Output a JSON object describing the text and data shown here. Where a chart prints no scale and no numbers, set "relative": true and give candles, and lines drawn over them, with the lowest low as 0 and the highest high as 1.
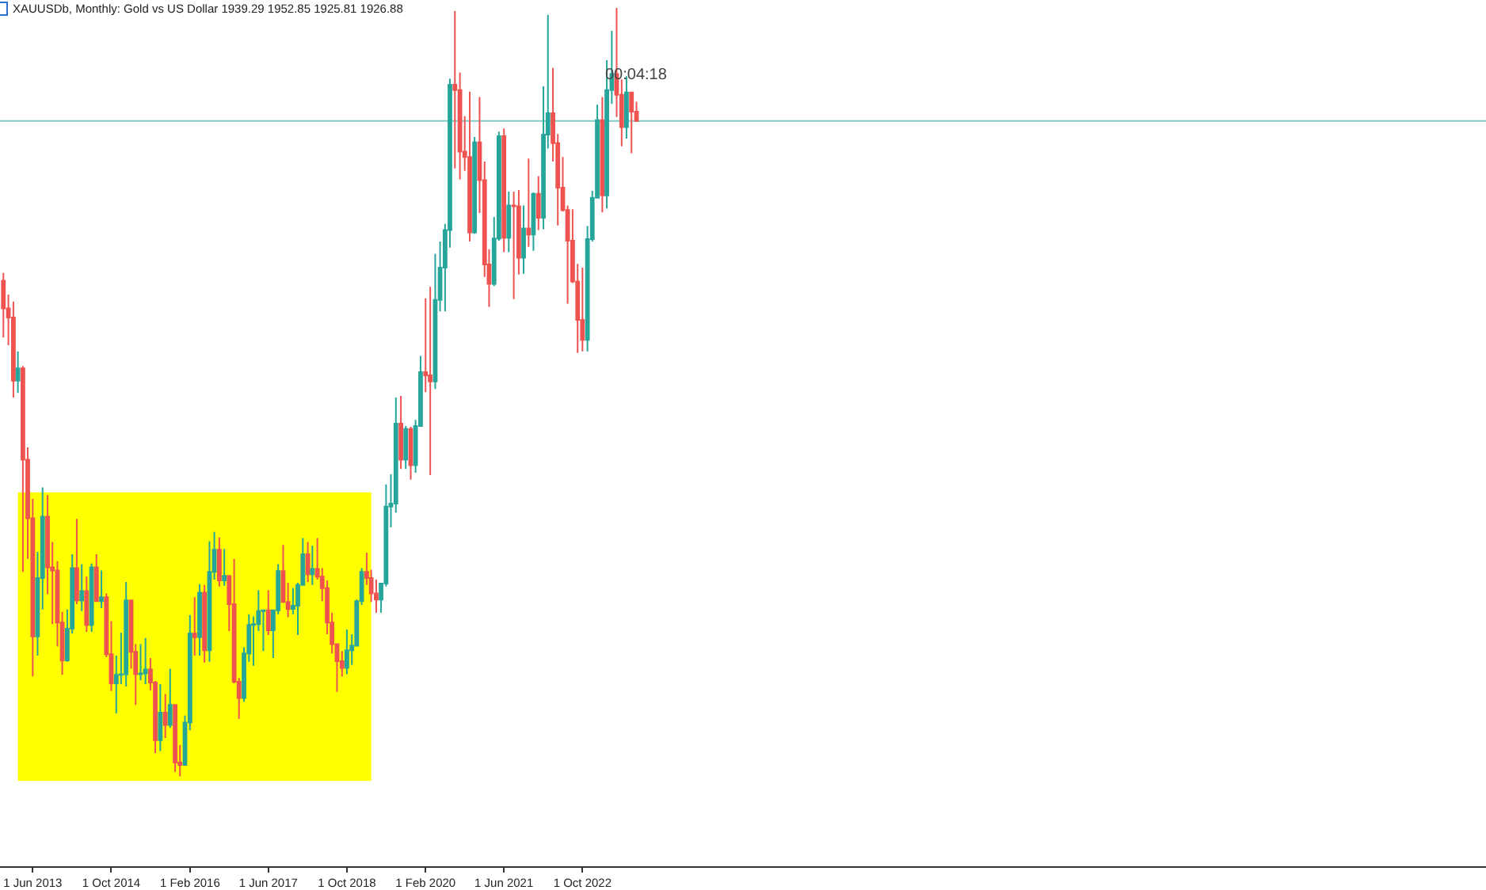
{
  "chart_data": {
    "type": "candlestick",
    "title": "XAUUSDb, Monthly: Gold vs US Dollar 1939.29 1952.85 1925.81 1926.88",
    "relative": true,
    "x": [
      "2012-12",
      "2013-01",
      "2013-02",
      "2013-03",
      "2013-04",
      "2013-05",
      "2013-06",
      "2013-07",
      "2013-08",
      "2013-09",
      "2013-10",
      "2013-11",
      "2013-12",
      "2014-01",
      "2014-02",
      "2014-03",
      "2014-04",
      "2014-05",
      "2014-06",
      "2014-07",
      "2014-08",
      "2014-09",
      "2014-10",
      "2014-11",
      "2014-12",
      "2015-01",
      "2015-02",
      "2015-03",
      "2015-04",
      "2015-05",
      "2015-06",
      "2015-07",
      "2015-08",
      "2015-09",
      "2015-10",
      "2015-11",
      "2015-12",
      "2016-01",
      "2016-02",
      "2016-03",
      "2016-04",
      "2016-05",
      "2016-06",
      "2016-07",
      "2016-08",
      "2016-09",
      "2016-10",
      "2016-11",
      "2016-12",
      "2017-01",
      "2017-02",
      "2017-03",
      "2017-04",
      "2017-05",
      "2017-06",
      "2017-07",
      "2017-08",
      "2017-09",
      "2017-10",
      "2017-11",
      "2017-12",
      "2018-01",
      "2018-02",
      "2018-03",
      "2018-04",
      "2018-05",
      "2018-06",
      "2018-07",
      "2018-08",
      "2018-09",
      "2018-10",
      "2018-11",
      "2018-12",
      "2019-01",
      "2019-02",
      "2019-03",
      "2019-04",
      "2019-05",
      "2019-06",
      "2019-07",
      "2019-08",
      "2019-09",
      "2019-10",
      "2019-11",
      "2019-12",
      "2020-01",
      "2020-02",
      "2020-03",
      "2020-04",
      "2020-05",
      "2020-06",
      "2020-07",
      "2020-08",
      "2020-09",
      "2020-10",
      "2020-11",
      "2020-12",
      "2021-01",
      "2021-02",
      "2021-03",
      "2021-04",
      "2021-05",
      "2021-06",
      "2021-07",
      "2021-08",
      "2021-09",
      "2021-10",
      "2021-11",
      "2021-12",
      "2022-01",
      "2022-02",
      "2022-03",
      "2022-04",
      "2022-05",
      "2022-06",
      "2022-07",
      "2022-08",
      "2022-09",
      "2022-10",
      "2022-11",
      "2022-12",
      "2023-01",
      "2023-02",
      "2023-03",
      "2023-04",
      "2023-05",
      "2023-06",
      "2023-07",
      "2023-08",
      "2023-09"
    ],
    "ohlc": [
      [
        0.645,
        0.655,
        0.571,
        0.609
      ],
      [
        0.609,
        0.627,
        0.561,
        0.597
      ],
      [
        0.597,
        0.618,
        0.493,
        0.515
      ],
      [
        0.515,
        0.553,
        0.499,
        0.531
      ],
      [
        0.531,
        0.534,
        0.266,
        0.412
      ],
      [
        0.412,
        0.428,
        0.283,
        0.336
      ],
      [
        0.336,
        0.361,
        0.13,
        0.182
      ],
      [
        0.182,
        0.292,
        0.157,
        0.258
      ],
      [
        0.258,
        0.376,
        0.217,
        0.338
      ],
      [
        0.338,
        0.366,
        0.237,
        0.272
      ],
      [
        0.272,
        0.305,
        0.198,
        0.268
      ],
      [
        0.268,
        0.28,
        0.169,
        0.2
      ],
      [
        0.2,
        0.214,
        0.132,
        0.151
      ],
      [
        0.151,
        0.217,
        0.149,
        0.192
      ],
      [
        0.192,
        0.289,
        0.186,
        0.271
      ],
      [
        0.271,
        0.335,
        0.224,
        0.229
      ],
      [
        0.229,
        0.276,
        0.215,
        0.241
      ],
      [
        0.241,
        0.26,
        0.188,
        0.197
      ],
      [
        0.197,
        0.277,
        0.188,
        0.272
      ],
      [
        0.272,
        0.289,
        0.227,
        0.228
      ],
      [
        0.228,
        0.268,
        0.219,
        0.233
      ],
      [
        0.233,
        0.238,
        0.155,
        0.159
      ],
      [
        0.159,
        0.202,
        0.111,
        0.121
      ],
      [
        0.121,
        0.157,
        0.082,
        0.132
      ],
      [
        0.132,
        0.187,
        0.12,
        0.133
      ],
      [
        0.133,
        0.253,
        0.117,
        0.229
      ],
      [
        0.229,
        0.23,
        0.14,
        0.162
      ],
      [
        0.162,
        0.172,
        0.093,
        0.133
      ],
      [
        0.133,
        0.172,
        0.125,
        0.134
      ],
      [
        0.134,
        0.18,
        0.12,
        0.139
      ],
      [
        0.139,
        0.154,
        0.112,
        0.122
      ],
      [
        0.122,
        0.124,
        0.03,
        0.047
      ],
      [
        0.047,
        0.12,
        0.033,
        0.083
      ],
      [
        0.083,
        0.107,
        0.05,
        0.067
      ],
      [
        0.067,
        0.14,
        0.063,
        0.093
      ],
      [
        0.093,
        0.093,
        0.006,
        0.018
      ],
      [
        0.018,
        0.041,
        0,
        0.015
      ],
      [
        0.015,
        0.079,
        0.014,
        0.07
      ],
      [
        0.07,
        0.21,
        0.06,
        0.186
      ],
      [
        0.186,
        0.233,
        0.157,
        0.181
      ],
      [
        0.181,
        0.25,
        0.157,
        0.239
      ],
      [
        0.239,
        0.249,
        0.148,
        0.164
      ],
      [
        0.164,
        0.306,
        0.149,
        0.266
      ],
      [
        0.266,
        0.318,
        0.256,
        0.295
      ],
      [
        0.295,
        0.311,
        0.247,
        0.255
      ],
      [
        0.255,
        0.296,
        0.248,
        0.261
      ],
      [
        0.261,
        0.262,
        0.189,
        0.224
      ],
      [
        0.224,
        0.283,
        0.121,
        0.123
      ],
      [
        0.123,
        0.128,
        0.075,
        0.102
      ],
      [
        0.102,
        0.168,
        0.097,
        0.16
      ],
      [
        0.16,
        0.211,
        0.149,
        0.197
      ],
      [
        0.197,
        0.208,
        0.144,
        0.198
      ],
      [
        0.198,
        0.242,
        0.189,
        0.215
      ],
      [
        0.215,
        0.217,
        0.163,
        0.216
      ],
      [
        0.216,
        0.242,
        0.184,
        0.19
      ],
      [
        0.19,
        0.217,
        0.154,
        0.216
      ],
      [
        0.216,
        0.276,
        0.211,
        0.267
      ],
      [
        0.267,
        0.301,
        0.226,
        0.227
      ],
      [
        0.227,
        0.252,
        0.207,
        0.218
      ],
      [
        0.218,
        0.245,
        0.211,
        0.222
      ],
      [
        0.222,
        0.252,
        0.184,
        0.249
      ],
      [
        0.249,
        0.31,
        0.248,
        0.289
      ],
      [
        0.289,
        0.305,
        0.253,
        0.263
      ],
      [
        0.263,
        0.3,
        0.249,
        0.27
      ],
      [
        0.27,
        0.31,
        0.256,
        0.26
      ],
      [
        0.26,
        0.271,
        0.228,
        0.245
      ],
      [
        0.245,
        0.255,
        0.185,
        0.2
      ],
      [
        0.2,
        0.213,
        0.16,
        0.172
      ],
      [
        0.172,
        0.173,
        0.11,
        0.15
      ],
      [
        0.15,
        0.163,
        0.13,
        0.141
      ],
      [
        0.141,
        0.191,
        0.133,
        0.164
      ],
      [
        0.164,
        0.185,
        0.145,
        0.17
      ],
      [
        0.17,
        0.23,
        0.169,
        0.228
      ],
      [
        0.228,
        0.271,
        0.223,
        0.266
      ],
      [
        0.266,
        0.291,
        0.249,
        0.258
      ],
      [
        0.258,
        0.269,
        0.227,
        0.238
      ],
      [
        0.238,
        0.256,
        0.213,
        0.23
      ],
      [
        0.23,
        0.252,
        0.213,
        0.251
      ],
      [
        0.251,
        0.38,
        0.247,
        0.351
      ],
      [
        0.351,
        0.393,
        0.324,
        0.355
      ],
      [
        0.355,
        0.493,
        0.343,
        0.459
      ],
      [
        0.459,
        0.495,
        0.4,
        0.412
      ],
      [
        0.412,
        0.456,
        0.4,
        0.452
      ],
      [
        0.452,
        0.455,
        0.386,
        0.405
      ],
      [
        0.405,
        0.464,
        0.395,
        0.456
      ],
      [
        0.456,
        0.547,
        0.456,
        0.526
      ],
      [
        0.526,
        0.622,
        0.5,
        0.522
      ],
      [
        0.522,
        0.637,
        0.392,
        0.514
      ],
      [
        0.514,
        0.68,
        0.504,
        0.62
      ],
      [
        0.62,
        0.696,
        0.605,
        0.662
      ],
      [
        0.662,
        0.719,
        0.605,
        0.711
      ],
      [
        0.711,
        0.908,
        0.688,
        0.9
      ],
      [
        0.9,
        0.996,
        0.791,
        0.893
      ],
      [
        0.893,
        0.916,
        0.777,
        0.813
      ],
      [
        0.813,
        0.859,
        0.788,
        0.806
      ],
      [
        0.806,
        0.891,
        0.696,
        0.708
      ],
      [
        0.708,
        0.832,
        0.706,
        0.825
      ],
      [
        0.825,
        0.884,
        0.733,
        0.776
      ],
      [
        0.776,
        0.8,
        0.65,
        0.666
      ],
      [
        0.666,
        0.686,
        0.611,
        0.641
      ],
      [
        0.641,
        0.728,
        0.638,
        0.7
      ],
      [
        0.7,
        0.839,
        0.697,
        0.833
      ],
      [
        0.833,
        0.843,
        0.682,
        0.701
      ],
      [
        0.701,
        0.761,
        0.682,
        0.743
      ],
      [
        0.743,
        0.761,
        0.621,
        0.742
      ],
      [
        0.742,
        0.763,
        0.653,
        0.675
      ],
      [
        0.675,
        0.743,
        0.654,
        0.713
      ],
      [
        0.713,
        0.804,
        0.689,
        0.705
      ],
      [
        0.705,
        0.76,
        0.684,
        0.758
      ],
      [
        0.758,
        0.781,
        0.711,
        0.727
      ],
      [
        0.727,
        0.898,
        0.712,
        0.835
      ],
      [
        0.835,
        0.991,
        0.817,
        0.863
      ],
      [
        0.863,
        0.922,
        0.8,
        0.824
      ],
      [
        0.824,
        0.836,
        0.717,
        0.766
      ],
      [
        0.766,
        0.806,
        0.735,
        0.737
      ],
      [
        0.737,
        0.743,
        0.615,
        0.697
      ],
      [
        0.697,
        0.738,
        0.642,
        0.644
      ],
      [
        0.644,
        0.667,
        0.551,
        0.594
      ],
      [
        0.594,
        0.662,
        0.553,
        0.568
      ],
      [
        0.568,
        0.716,
        0.553,
        0.699
      ],
      [
        0.699,
        0.762,
        0.696,
        0.753
      ],
      [
        0.753,
        0.874,
        0.752,
        0.854
      ],
      [
        0.854,
        0.884,
        0.734,
        0.756
      ],
      [
        0.756,
        0.932,
        0.739,
        0.893
      ],
      [
        0.893,
        0.97,
        0.875,
        0.914
      ],
      [
        0.914,
        1,
        0.858,
        0.887
      ],
      [
        0.887,
        0.907,
        0.82,
        0.845
      ],
      [
        0.845,
        0.911,
        0.83,
        0.89
      ],
      [
        0.89,
        0.891,
        0.811,
        0.865
      ],
      [
        0.865,
        0.878,
        0.852,
        0.853
      ]
    ],
    "colors": [
      "#ef5350",
      "#ef5350",
      "#ef5350",
      "#26a69a",
      "#ef5350",
      "#ef5350",
      "#ef5350",
      "#26a69a",
      "#26a69a",
      "#ef5350",
      "#ef5350",
      "#ef5350",
      "#ef5350",
      "#26a69a",
      "#26a69a",
      "#ef5350",
      "#26a69a",
      "#ef5350",
      "#26a69a",
      "#ef5350",
      "#26a69a",
      "#ef5350",
      "#ef5350",
      "#26a69a",
      "#26a69a",
      "#26a69a",
      "#ef5350",
      "#ef5350",
      "#26a69a",
      "#26a69a",
      "#ef5350",
      "#ef5350",
      "#26a69a",
      "#ef5350",
      "#26a69a",
      "#ef5350",
      "#ef5350",
      "#26a69a",
      "#26a69a",
      "#ef5350",
      "#26a69a",
      "#ef5350",
      "#26a69a",
      "#26a69a",
      "#ef5350",
      "#26a69a",
      "#ef5350",
      "#ef5350",
      "#ef5350",
      "#26a69a",
      "#26a69a",
      "#26a69a",
      "#26a69a",
      "#26a69a",
      "#ef5350",
      "#26a69a",
      "#26a69a",
      "#ef5350",
      "#ef5350",
      "#26a69a",
      "#26a69a",
      "#26a69a",
      "#ef5350",
      "#26a69a",
      "#ef5350",
      "#ef5350",
      "#ef5350",
      "#ef5350",
      "#ef5350",
      "#ef5350",
      "#26a69a",
      "#26a69a",
      "#26a69a",
      "#26a69a",
      "#ef5350",
      "#ef5350",
      "#ef5350",
      "#26a69a",
      "#26a69a",
      "#26a69a",
      "#26a69a",
      "#ef5350",
      "#26a69a",
      "#ef5350",
      "#26a69a",
      "#26a69a",
      "#ef5350",
      "#ef5350",
      "#26a69a",
      "#26a69a",
      "#26a69a",
      "#26a69a",
      "#ef5350",
      "#ef5350",
      "#ef5350",
      "#ef5350",
      "#26a69a",
      "#ef5350",
      "#ef5350",
      "#ef5350",
      "#26a69a",
      "#26a69a",
      "#ef5350",
      "#26a69a",
      "#ef5350",
      "#ef5350",
      "#26a69a",
      "#ef5350",
      "#26a69a",
      "#ef5350",
      "#26a69a",
      "#26a69a",
      "#ef5350",
      "#ef5350",
      "#ef5350",
      "#ef5350",
      "#ef5350",
      "#ef5350",
      "#ef5350",
      "#26a69a",
      "#26a69a",
      "#26a69a",
      "#ef5350",
      "#26a69a",
      "#26a69a",
      "#ef5350",
      "#ef5350",
      "#26a69a",
      "#ef5350",
      "#ef5350"
    ],
    "xlim": [
      "2012-11-10",
      "2038-02-02"
    ],
    "xticks": [
      {
        "value": "2013-06",
        "label": "1 Jun 2013"
      },
      {
        "value": "2014-10",
        "label": "1 Oct 2014"
      },
      {
        "value": "2016-02",
        "label": "1 Feb 2016"
      },
      {
        "value": "2017-06",
        "label": "1 Jun 2017"
      },
      {
        "value": "2018-10",
        "label": "1 Oct 2018"
      },
      {
        "value": "2020-02",
        "label": "1 Feb 2020"
      },
      {
        "value": "2021-06",
        "label": "1 Jun 2021"
      },
      {
        "value": "2022-10",
        "label": "1 Oct 2022"
      }
    ],
    "bands": [
      {
        "axis": "x",
        "from": "2013-03",
        "to": "2019-03",
        "color": "#ffff00"
      }
    ],
    "ref_lines": [
      {
        "axis": "y",
        "value": 0.853,
        "color": "#80cbc4"
      }
    ],
    "annotations": [
      "00:04:18"
    ],
    "grid": false
  }
}
